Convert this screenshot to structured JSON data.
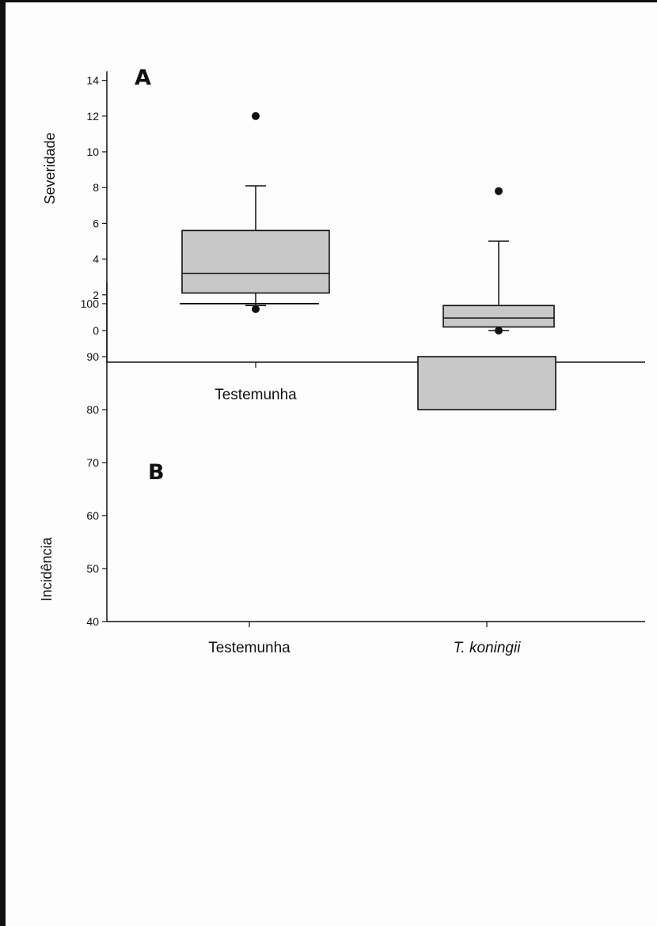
{
  "chart_data": [
    {
      "type": "box",
      "panel_label": "A",
      "title": "",
      "xlabel": "",
      "ylabel": "Severidade",
      "ylim": [
        -1.8,
        14.5
      ],
      "yticks": [
        0,
        2,
        4,
        6,
        8,
        10,
        12,
        14
      ],
      "categories": [
        "Testemunha",
        "T. koningii"
      ],
      "italic_categories": [
        false,
        true
      ],
      "boxes": [
        {
          "q1": 2.1,
          "median": 3.2,
          "q3": 5.6,
          "whisker_low": 1.4,
          "whisker_high": 8.1,
          "outliers": [
            12.0,
            1.2
          ]
        },
        {
          "q1": 0.2,
          "median": 0.7,
          "q3": 1.4,
          "whisker_low": 0.0,
          "whisker_high": 5.0,
          "outliers": [
            7.8,
            0.0
          ]
        }
      ],
      "box_color": "#c8c8c8"
    },
    {
      "type": "box",
      "panel_label": "B",
      "title": "",
      "xlabel": "",
      "ylabel": "Incidência",
      "ylim": [
        40,
        104
      ],
      "yticks": [
        40,
        50,
        60,
        70,
        80,
        90,
        100
      ],
      "categories": [
        "Testemunha",
        "T. koningii"
      ],
      "italic_categories": [
        false,
        true
      ],
      "boxes": [
        {
          "q1": 100,
          "median": 100,
          "q3": 100,
          "whisker_low": 100,
          "whisker_high": 100,
          "outliers": []
        },
        {
          "q1": 80,
          "median": 80,
          "q3": 90,
          "whisker_low": 80,
          "whisker_high": 90,
          "outliers": []
        }
      ],
      "box_color": "#c8c8c8"
    }
  ]
}
